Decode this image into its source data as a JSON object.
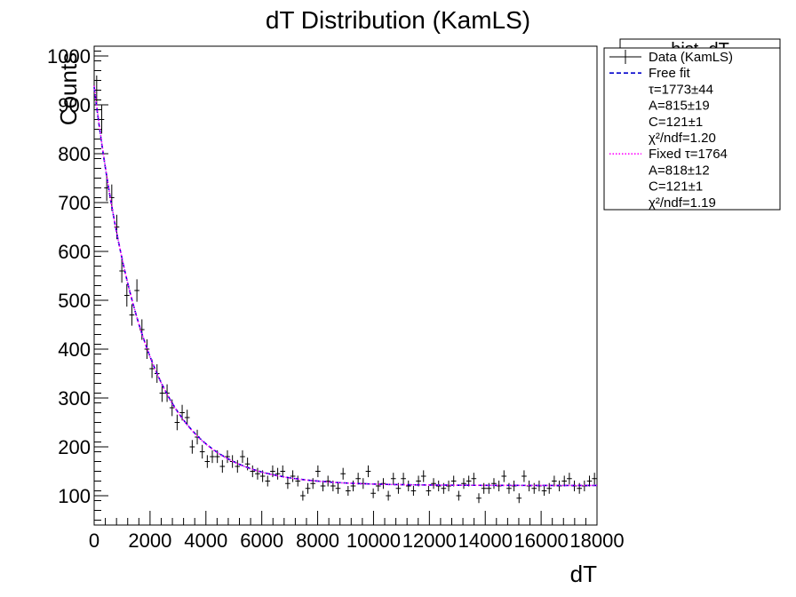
{
  "chart_data": {
    "type": "scatter",
    "title": "dT Distribution (KamLS)",
    "xlabel": "dT",
    "ylabel": "Counts",
    "xlim": [
      0,
      18000
    ],
    "ylim": [
      40,
      1020
    ],
    "x_ticks": [
      0,
      2000,
      4000,
      6000,
      8000,
      10000,
      12000,
      14000,
      16000,
      18000
    ],
    "x_tick_labels": [
      "0",
      "2000",
      "4000",
      "6000",
      "8000",
      "10000",
      "12000",
      "14000",
      "16000",
      "18000"
    ],
    "y_ticks": [
      100,
      200,
      300,
      400,
      500,
      600,
      700,
      800,
      900,
      1000
    ],
    "y_tick_labels": [
      "100",
      "200",
      "300",
      "400",
      "500",
      "600",
      "700",
      "800",
      "900",
      "1000"
    ],
    "stats_box_label": "hist_dT",
    "series": [
      {
        "name": "Data (KamLS)",
        "kind": "points",
        "color": "#000000",
        "x": [
          90,
          270,
          450,
          630,
          810,
          990,
          1170,
          1350,
          1530,
          1710,
          1890,
          2070,
          2250,
          2430,
          2610,
          2790,
          2970,
          3150,
          3330,
          3510,
          3690,
          3870,
          4050,
          4230,
          4410,
          4590,
          4770,
          4950,
          5130,
          5310,
          5490,
          5670,
          5850,
          6030,
          6210,
          6390,
          6570,
          6750,
          6930,
          7110,
          7290,
          7470,
          7650,
          7830,
          8010,
          8190,
          8370,
          8550,
          8730,
          8910,
          9090,
          9270,
          9450,
          9630,
          9810,
          9990,
          10170,
          10350,
          10530,
          10710,
          10890,
          11070,
          11250,
          11430,
          11610,
          11790,
          11970,
          12150,
          12330,
          12510,
          12690,
          12870,
          13050,
          13230,
          13410,
          13590,
          13770,
          13950,
          14130,
          14310,
          14490,
          14670,
          14850,
          15030,
          15210,
          15390,
          15570,
          15750,
          15930,
          16110,
          16290,
          16470,
          16650,
          16830,
          17010,
          17190,
          17370,
          17550,
          17730,
          17910
        ],
        "y": [
          930,
          870,
          730,
          710,
          650,
          560,
          510,
          470,
          520,
          440,
          400,
          360,
          350,
          310,
          310,
          280,
          250,
          270,
          260,
          200,
          220,
          190,
          170,
          180,
          180,
          160,
          180,
          170,
          160,
          180,
          165,
          150,
          145,
          140,
          130,
          150,
          145,
          150,
          125,
          140,
          130,
          100,
          115,
          125,
          150,
          120,
          130,
          120,
          115,
          145,
          110,
          120,
          135,
          125,
          150,
          105,
          120,
          125,
          100,
          135,
          115,
          135,
          120,
          110,
          130,
          140,
          110,
          125,
          120,
          115,
          120,
          130,
          100,
          125,
          130,
          135,
          95,
          115,
          115,
          125,
          120,
          140,
          115,
          120,
          95,
          140,
          120,
          115,
          120,
          110,
          115,
          130,
          120,
          130,
          135,
          120,
          115,
          120,
          130,
          135
        ],
        "yerr": [
          30,
          29,
          27,
          27,
          25,
          24,
          23,
          22,
          23,
          21,
          20,
          19,
          19,
          18,
          18,
          17,
          16,
          16,
          16,
          14,
          15,
          14,
          13,
          13,
          13,
          13,
          13,
          13,
          13,
          13,
          13,
          12,
          12,
          12,
          11,
          12,
          12,
          12,
          11,
          12,
          11,
          10,
          11,
          11,
          12,
          11,
          11,
          11,
          11,
          12,
          10,
          11,
          12,
          11,
          12,
          10,
          11,
          11,
          10,
          12,
          11,
          12,
          11,
          10,
          11,
          12,
          10,
          11,
          11,
          11,
          11,
          11,
          10,
          11,
          11,
          12,
          10,
          11,
          11,
          11,
          11,
          12,
          11,
          11,
          10,
          12,
          11,
          11,
          11,
          10,
          11,
          11,
          11,
          11,
          12,
          11,
          11,
          11,
          11,
          12
        ],
        "xerr": 90
      },
      {
        "name": "Free fit",
        "kind": "curve",
        "color": "#0000cc",
        "style": "dashed",
        "tau": 1773,
        "A": 815,
        "C": 121
      },
      {
        "name": "Fixed τ=1764",
        "kind": "curve",
        "color": "#ff00ff",
        "style": "dotted",
        "tau": 1764,
        "A": 818,
        "C": 121
      }
    ],
    "legend": {
      "placement": "top-right",
      "entries": [
        {
          "label": "Data (KamLS)",
          "marker": "points"
        },
        {
          "label": "Free fit",
          "marker": "dashed"
        },
        {
          "label": "τ=1773±44",
          "marker": "none"
        },
        {
          "label": "A=815±19",
          "marker": "none"
        },
        {
          "label": "C=121±1",
          "marker": "none"
        },
        {
          "label": "χ²/ndf=1.20",
          "marker": "none"
        },
        {
          "label": "Fixed τ=1764",
          "marker": "dotted"
        },
        {
          "label": "A=818±12",
          "marker": "none"
        },
        {
          "label": "C=121±1",
          "marker": "none"
        },
        {
          "label": "χ²/ndf=1.19",
          "marker": "none"
        }
      ]
    }
  }
}
